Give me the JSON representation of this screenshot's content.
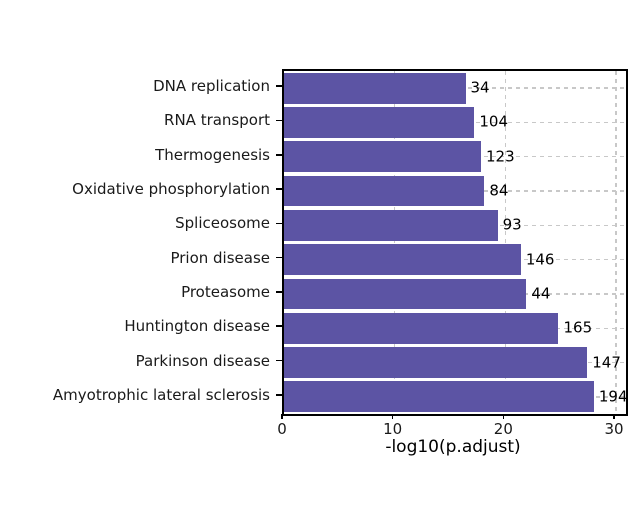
{
  "chart_data": {
    "type": "bar",
    "orientation": "horizontal",
    "title": "",
    "xlabel": "-log10(p.adjust)",
    "ylabel": "",
    "categories": [
      "DNA replication",
      "RNA transport",
      "Thermogenesis",
      "Oxidative phosphorylation",
      "Spliceosome",
      "Prion disease",
      "Proteasome",
      "Huntington disease",
      "Parkinson disease",
      "Amyotrophic lateral sclerosis"
    ],
    "values": [
      16.4,
      17.2,
      17.8,
      18.1,
      19.3,
      21.4,
      21.9,
      24.8,
      27.4,
      28.0
    ],
    "bar_labels": [
      "34",
      "104",
      "123",
      "84",
      "93",
      "146",
      "44",
      "165",
      "147",
      "194"
    ],
    "xticks": [
      "0",
      "10",
      "20",
      "30"
    ],
    "xtick_values": [
      0,
      10,
      20,
      30
    ],
    "xlim": [
      0,
      30.9
    ],
    "bar_color": "#5c54a4",
    "grid": {
      "style": "dashed",
      "color": "#c8c8c8",
      "horizontal": true,
      "vertical": true
    },
    "panel_border_color": "#000000",
    "text_color": "#1a1a1a",
    "background_color": "#ffffff",
    "legend": "none"
  }
}
